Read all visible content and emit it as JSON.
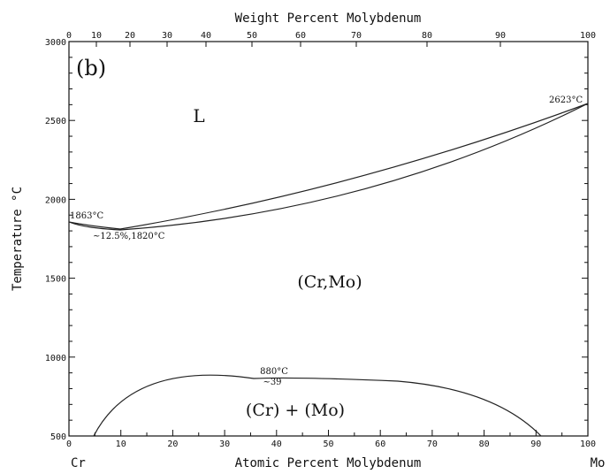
{
  "figure": {
    "panel_label": "(b)",
    "top_axis_label": "Weight Percent Molybdenum",
    "bottom_axis_label": "Atomic Percent Molybdenum",
    "y_axis_label": "Temperature °C",
    "left_element": "Cr",
    "right_element": "Mo",
    "x_ticks": [
      "0",
      "10",
      "20",
      "30",
      "40",
      "50",
      "60",
      "70",
      "80",
      "90",
      "100"
    ],
    "top_ticks": [
      "0",
      "10",
      "20",
      "30",
      "40",
      "50",
      "60",
      "70",
      "80",
      "90",
      "100"
    ],
    "y_ticks": [
      "3000",
      "2500",
      "2000",
      "1500",
      "1000",
      "500"
    ]
  },
  "regions": {
    "liquid": "L",
    "solid_solution": "(Cr,Mo)",
    "two_phase": "(Cr) + (Mo)"
  },
  "annotations": {
    "cr_melting": "1863°C",
    "minimum": "~12.5%,1820°C",
    "mo_melting": "2623°C",
    "miscibility_temp": "880°C",
    "miscibility_comp": "~39"
  },
  "colors": {
    "line": "#222222",
    "background": "#ffffff"
  }
}
